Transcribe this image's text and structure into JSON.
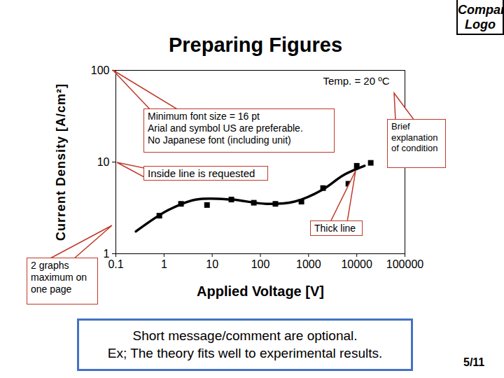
{
  "title": "Preparing Figures",
  "logo": [
    "Company",
    "Logo"
  ],
  "page": "5/11",
  "message": [
    "Short message/comment are optional.",
    "Ex; The theory fits well to experimental results."
  ],
  "callouts": [
    [
      "Minimum font size = 16 pt",
      "Arial and symbol US are preferable.",
      "No Japanese font (including unit)"
    ],
    [
      "Inside line is requested"
    ],
    [
      "Brief explanation of condition"
    ],
    [
      "Thick line"
    ],
    [
      "2 graphs maximum on one page"
    ]
  ],
  "chart_data": {
    "type": "scatter",
    "xlabel": "Applied Voltage [V]",
    "ylabel": "Current Density [A/cm²]",
    "log": true,
    "grid": false,
    "xlim": [
      0.1,
      100000
    ],
    "ylim": [
      1,
      100
    ],
    "xticks": [
      0.1,
      1,
      10,
      100,
      1000,
      10000,
      100000
    ],
    "yticks": [
      1,
      10,
      100
    ],
    "annotations": [
      "Temp. = 20 ºC"
    ],
    "series": [
      {
        "type": "scatter",
        "marker": "square",
        "color": "#000000",
        "x": [
          0.8,
          2.25,
          7.8,
          25,
          73,
          205,
          710,
          2000,
          6700,
          10000,
          19500
        ],
        "values": [
          2.6,
          3.5,
          3.4,
          3.9,
          3.6,
          3.5,
          3.7,
          5.2,
          5.8,
          9.1,
          9.8
        ]
      },
      {
        "type": "line",
        "line_style": "solid",
        "color": "#000000",
        "x": [
          0.26,
          1.23,
          4.7,
          25,
          133,
          510,
          1950,
          5300,
          14500
        ],
        "values": [
          1.75,
          3.0,
          3.9,
          3.9,
          3.5,
          3.7,
          5.0,
          7.2,
          9.1
        ]
      }
    ]
  }
}
